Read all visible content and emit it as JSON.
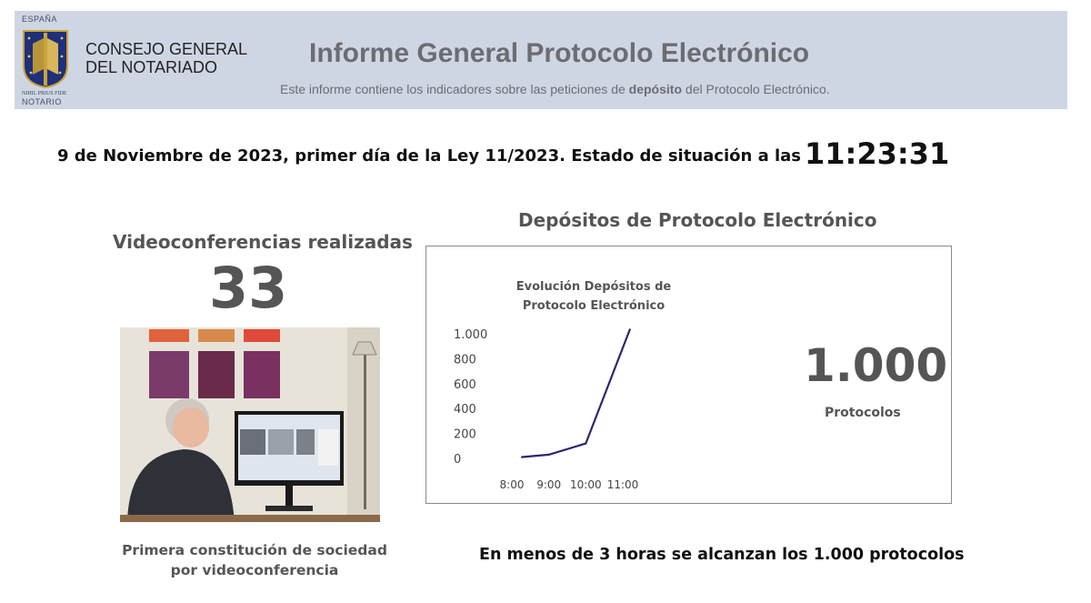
{
  "header": {
    "logo_top": "ESPAÑA",
    "logo_motto": "NIHIL PRIUS FIDE",
    "logo_bottom": "NOTARIO",
    "org_line1": "CONSEJO GENERAL",
    "org_line2": "DEL NOTARIADO",
    "title": "Informe General Protocolo Electrónico",
    "subtitle_pre": "Este informe contiene los indicadores sobre las peticiones de ",
    "subtitle_bold": "depósito",
    "subtitle_post": " del Protocolo Electrónico."
  },
  "status": {
    "text": "9 de Noviembre de 2023, primer día de la Ley 11/2023. Estado de situación a las",
    "time": "11:23:31"
  },
  "video": {
    "title": "Videoconferencias realizadas",
    "count": "33",
    "caption_line1": "Primera constitución de sociedad",
    "caption_line2": "por videoconferencia"
  },
  "deposits": {
    "title": "Depósitos de Protocolo Electrónico",
    "big_number": "1.000",
    "big_unit": "Protocolos",
    "footer": "En menos de 3 horas se alcanzan los 1.000 protocolos"
  },
  "chart_data": {
    "type": "line",
    "title": "Evolución Depósitos de Protocolo Electrónico",
    "title_line1": "Evolución Depósitos de",
    "title_line2": "Protocolo Electrónico",
    "x": [
      8.25,
      9.0,
      10.0,
      11.2
    ],
    "y": [
      10,
      30,
      120,
      1040
    ],
    "xticks": [
      8,
      9,
      10,
      11
    ],
    "xtick_labels": [
      "8:00",
      "9:00",
      "10:00",
      "11:00"
    ],
    "yticks": [
      0,
      200,
      400,
      600,
      800,
      1000
    ],
    "ytick_labels": [
      "0",
      "200",
      "400",
      "600",
      "800",
      "1.000"
    ],
    "xlim": [
      8,
      11
    ],
    "ylim": [
      0,
      1000
    ],
    "line_color": "#2b2670",
    "grid": false
  },
  "colors": {
    "header_bg": "#cfd6e3",
    "title_gray": "#6c6c72",
    "line": "#2b2670"
  }
}
